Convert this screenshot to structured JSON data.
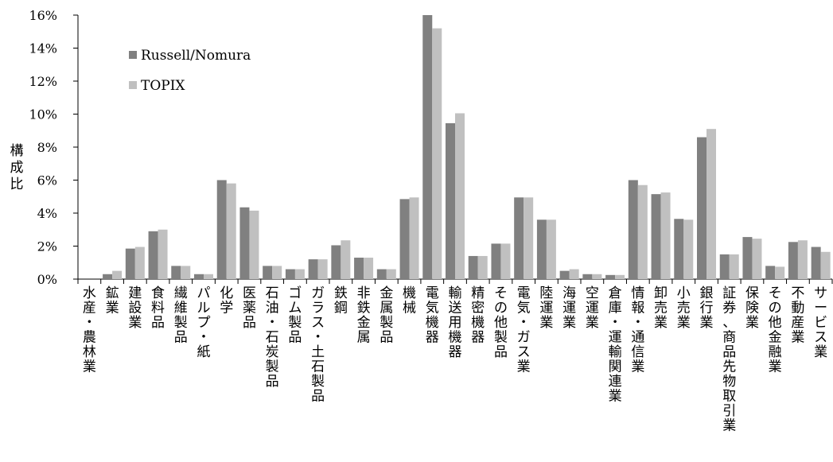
{
  "chart_data": {
    "type": "bar",
    "title": "",
    "xlabel": "",
    "ylabel": "構成比",
    "ylim": [
      0,
      16
    ],
    "yticks": [
      0,
      2,
      4,
      6,
      8,
      10,
      12,
      14,
      16
    ],
    "ytick_labels": [
      "0%",
      "2%",
      "4%",
      "6%",
      "8%",
      "10%",
      "12%",
      "14%",
      "16%"
    ],
    "grid": false,
    "legend_position": "top-left",
    "categories": [
      "水産・農林業",
      "鉱業",
      "建設業",
      "食料品",
      "繊維製品",
      "パルプ・紙",
      "化学",
      "医薬品",
      "石油・石炭製品",
      "ゴム製品",
      "ガラス・土石製品",
      "鉄鋼",
      "非鉄金属",
      "金属製品",
      "機械",
      "電気機器",
      "輸送用機器",
      "精密機器",
      "その他製品",
      "電気・ガス業",
      "陸運業",
      "海運業",
      "空運業",
      "倉庫・運輸関連業",
      "情報・通信業",
      "卸売業",
      "小売業",
      "銀行業",
      "証券、商品先物取引業",
      "保険業",
      "その他金融業",
      "不動産業",
      "サービス業"
    ],
    "series": [
      {
        "name": "Russell/Nomura",
        "color": "#808080",
        "values": [
          0.0,
          0.3,
          1.85,
          2.9,
          0.8,
          0.3,
          6.0,
          4.35,
          0.8,
          0.6,
          1.2,
          2.05,
          1.3,
          0.6,
          4.85,
          16.0,
          9.45,
          1.4,
          2.15,
          4.95,
          3.6,
          0.5,
          0.3,
          0.25,
          6.0,
          5.15,
          3.65,
          8.6,
          1.5,
          2.55,
          0.8,
          2.25,
          1.95
        ]
      },
      {
        "name": "TOPIX",
        "color": "#c0c0c0",
        "values": [
          0.0,
          0.5,
          1.95,
          3.0,
          0.8,
          0.3,
          5.8,
          4.15,
          0.8,
          0.6,
          1.2,
          2.35,
          1.3,
          0.6,
          4.95,
          15.2,
          10.05,
          1.4,
          2.15,
          4.95,
          3.6,
          0.6,
          0.3,
          0.25,
          5.7,
          5.25,
          3.6,
          9.1,
          1.5,
          2.45,
          0.75,
          2.35,
          1.65
        ]
      }
    ]
  }
}
